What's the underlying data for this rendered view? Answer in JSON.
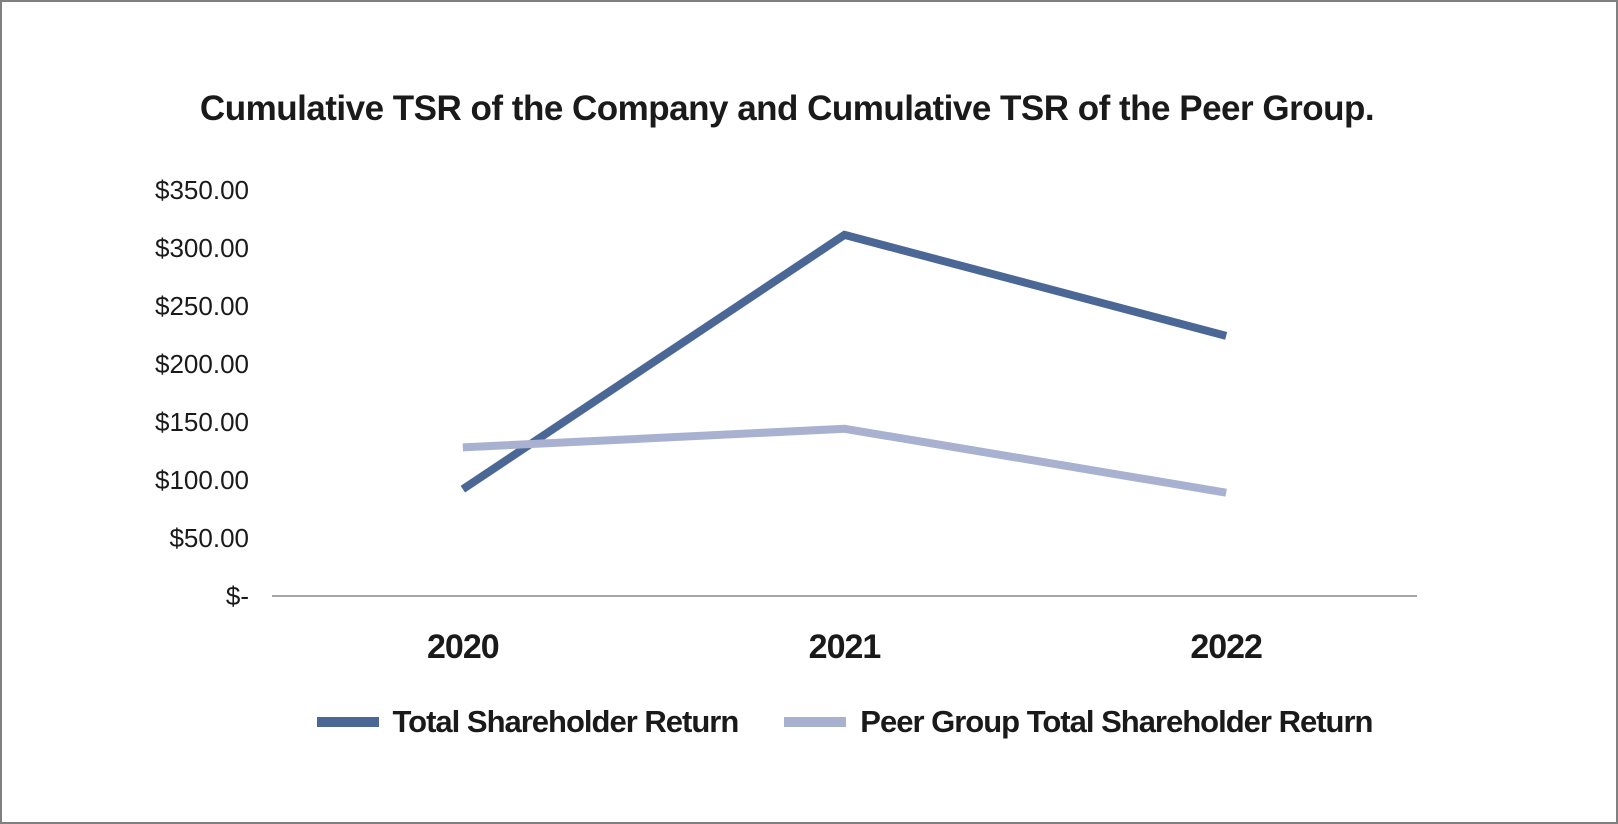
{
  "frame": {
    "border_color": "#808080",
    "background_color": "#ffffff"
  },
  "chart_data": {
    "type": "line",
    "title": "Cumulative TSR of the Company and Cumulative TSR of the Peer Group.",
    "categories": [
      "2020",
      "2021",
      "2022"
    ],
    "series": [
      {
        "name": "Total Shareholder Return",
        "color": "#4a6796",
        "values": [
          92,
          311,
          224
        ]
      },
      {
        "name": "Peer Group Total Shareholder Return",
        "color": "#a9b1d0",
        "values": [
          128,
          144,
          89
        ]
      }
    ],
    "y_axis": {
      "min": 0,
      "max": 350,
      "step": 50,
      "tick_labels": [
        "$350.00",
        "$300.00",
        "$250.00",
        "$200.00",
        "$150.00",
        "$100.00",
        "$50.00",
        "$-"
      ]
    },
    "x_axis": {
      "labels": [
        "2020",
        "2021",
        "2022"
      ]
    },
    "legend_position": "bottom",
    "grid": false,
    "axis_line_color": "#a6a6a6",
    "text_color": "#1a1a1a",
    "line_width": 8
  }
}
